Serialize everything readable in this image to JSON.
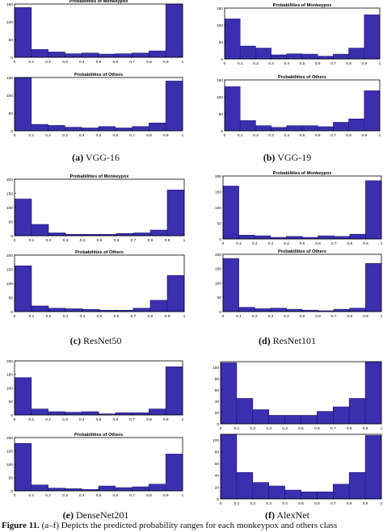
{
  "chart_data": [
    {
      "type": "bar",
      "title": "Probabilities of Monkeypox",
      "xlim": [
        0,
        1
      ],
      "ylim": [
        0,
        150
      ],
      "xticks": [
        "0",
        "0.1",
        "0.2",
        "0.3",
        "0.4",
        "0.5",
        "0.6",
        "0.7",
        "0.8",
        "0.9",
        "1"
      ],
      "yticks": [
        "0",
        "50",
        "100",
        "150"
      ],
      "values": [
        140,
        22,
        15,
        10,
        12,
        9,
        10,
        12,
        18,
        162
      ]
    },
    {
      "type": "bar",
      "title": "Probabilities of Others",
      "xlim": [
        0,
        1
      ],
      "ylim": [
        0,
        150
      ],
      "xticks": [
        "0",
        "0.1",
        "0.2",
        "0.3",
        "0.4",
        "0.5",
        "0.6",
        "0.7",
        "0.8",
        "0.9",
        "1"
      ],
      "yticks": [
        "0",
        "50",
        "100",
        "150"
      ],
      "values": [
        155,
        18,
        15,
        10,
        8,
        12,
        8,
        12,
        22,
        140
      ]
    },
    {
      "type": "bar",
      "title": "Probabilities of Monkeypox",
      "xlim": [
        0,
        1
      ],
      "ylim": [
        0,
        150
      ],
      "xticks": [
        "0",
        "0.1",
        "0.2",
        "0.3",
        "0.4",
        "0.5",
        "0.6",
        "0.7",
        "0.8",
        "0.9",
        "1"
      ],
      "yticks": [
        "0",
        "50",
        "100",
        "150"
      ],
      "values": [
        118,
        38,
        32,
        12,
        15,
        14,
        8,
        14,
        32,
        130
      ]
    },
    {
      "type": "bar",
      "title": "Probabilities of Others",
      "xlim": [
        0,
        1
      ],
      "ylim": [
        0,
        150
      ],
      "xticks": [
        "0",
        "0.1",
        "0.2",
        "0.3",
        "0.4",
        "0.5",
        "0.6",
        "0.7",
        "0.8",
        "0.9",
        "1"
      ],
      "yticks": [
        "0",
        "50",
        "100",
        "150"
      ],
      "values": [
        130,
        30,
        15,
        10,
        15,
        15,
        12,
        25,
        35,
        118
      ]
    },
    {
      "type": "bar",
      "title": "Probabilities of Monkeypox",
      "xlim": [
        0,
        1
      ],
      "ylim": [
        0,
        200
      ],
      "xticks": [
        "0",
        "0.1",
        "0.2",
        "0.3",
        "0.4",
        "0.5",
        "0.6",
        "0.7",
        "0.8",
        "0.9",
        "1"
      ],
      "yticks": [
        "0",
        "50",
        "100",
        "150",
        "200"
      ],
      "values": [
        130,
        40,
        10,
        5,
        5,
        5,
        8,
        10,
        20,
        162
      ]
    },
    {
      "type": "bar",
      "title": "Probabilities of Others",
      "xlim": [
        0,
        1
      ],
      "ylim": [
        0,
        200
      ],
      "xticks": [
        "0",
        "0.1",
        "0.2",
        "0.3",
        "0.4",
        "0.5",
        "0.6",
        "0.7",
        "0.8",
        "0.9",
        "1"
      ],
      "yticks": [
        "0",
        "50",
        "100",
        "150",
        "200"
      ],
      "values": [
        162,
        20,
        12,
        10,
        8,
        5,
        5,
        12,
        40,
        128
      ]
    },
    {
      "type": "bar",
      "title": "Probabilities of Monkeypox",
      "xlim": [
        0,
        1
      ],
      "ylim": [
        0,
        200
      ],
      "xticks": [
        "0",
        "0.1",
        "0.2",
        "0.3",
        "0.4",
        "0.5",
        "0.6",
        "0.7",
        "0.8",
        "0.9",
        "1"
      ],
      "yticks": [
        "0",
        "50",
        "100",
        "150",
        "200"
      ],
      "values": [
        168,
        12,
        10,
        5,
        8,
        5,
        10,
        8,
        15,
        185
      ]
    },
    {
      "type": "bar",
      "title": "Probabilities of Others",
      "xlim": [
        0,
        1
      ],
      "ylim": [
        0,
        200
      ],
      "xticks": [
        "0",
        "0.1",
        "0.2",
        "0.3",
        "0.4",
        "0.5",
        "0.6",
        "0.7",
        "0.8",
        "0.9",
        "1"
      ],
      "yticks": [
        "0",
        "50",
        "100",
        "150",
        "200"
      ],
      "values": [
        185,
        15,
        10,
        12,
        8,
        5,
        3,
        8,
        12,
        168
      ]
    },
    {
      "type": "bar",
      "title": "",
      "xlim": [
        0,
        1
      ],
      "ylim": [
        0,
        200
      ],
      "xticks": [
        "0",
        "0.1",
        "0.2",
        "0.3",
        "0.4",
        "0.5",
        "0.6",
        "0.7",
        "0.8",
        "0.9",
        "1"
      ],
      "yticks": [
        "0",
        "50",
        "100",
        "150",
        "200"
      ],
      "values": [
        138,
        22,
        12,
        10,
        12,
        4,
        8,
        8,
        22,
        178
      ]
    },
    {
      "type": "bar",
      "title": "Probabilities of Others",
      "xlim": [
        0,
        1
      ],
      "ylim": [
        0,
        200
      ],
      "xticks": [
        "0",
        "0.1",
        "0.2",
        "0.3",
        "0.4",
        "0.5",
        "0.6",
        "0.7",
        "0.8",
        "0.9",
        "1"
      ],
      "yticks": [
        "0",
        "50",
        "100",
        "150",
        "200"
      ],
      "values": [
        178,
        22,
        10,
        8,
        5,
        18,
        12,
        15,
        25,
        138
      ]
    },
    {
      "type": "bar",
      "title": "",
      "xlim": [
        0,
        1
      ],
      "ylim": [
        0,
        110
      ],
      "xticks": [
        "0",
        "0.1",
        "0.2",
        "0.3",
        "0.4",
        "0.5",
        "0.6",
        "0.7",
        "0.8",
        "0.9",
        "1"
      ],
      "yticks": [
        "0",
        "20",
        "40",
        "60",
        "80",
        "100"
      ],
      "values": [
        108,
        45,
        25,
        15,
        15,
        15,
        22,
        30,
        45,
        110
      ]
    },
    {
      "type": "bar",
      "title": "",
      "xlim": [
        0,
        1
      ],
      "ylim": [
        0,
        110
      ],
      "xticks": [
        "0",
        "0.1",
        "0.2",
        "0.3",
        "0.4",
        "0.5",
        "0.6",
        "0.7",
        "0.8",
        "0.9",
        "1"
      ],
      "yticks": [
        "0",
        "20",
        "40",
        "60",
        "80",
        "100"
      ],
      "values": [
        112,
        45,
        28,
        22,
        15,
        12,
        12,
        25,
        45,
        108
      ]
    }
  ],
  "captions": [
    {
      "letter": "(a)",
      "name": "VGG-16"
    },
    {
      "letter": "(b)",
      "name": "VGG-19"
    },
    {
      "letter": "(c)",
      "name": "ResNet50"
    },
    {
      "letter": "(d)",
      "name": "ResNet101"
    },
    {
      "letter": "(e)",
      "name": "DenseNet201"
    },
    {
      "letter": "(f)",
      "name": "AlexNet"
    }
  ],
  "footer": {
    "label": "Figure 11.",
    "text": "(a–f) Depicts the predicted probability ranges for each monkeypox and others class"
  },
  "colors": {
    "bar": "#3b2fb0",
    "bar_stroke": "#1c1470",
    "axis": "#000000"
  }
}
